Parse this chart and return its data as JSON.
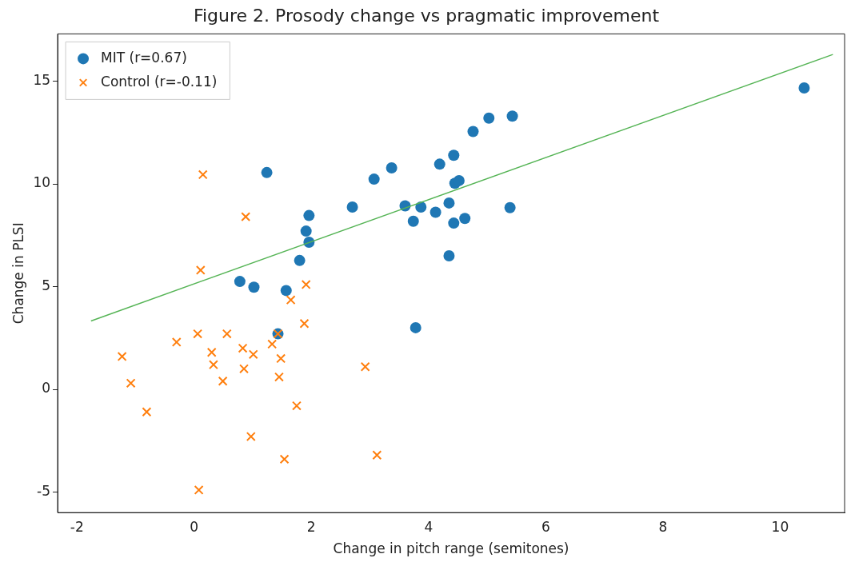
{
  "chart_data": {
    "type": "scatter",
    "title": "Figure 2. Prosody change vs pragmatic improvement",
    "xlabel": "Change in pitch range (semitones)",
    "ylabel": "Change in PLSI",
    "xlim": [
      -2.33,
      11.1
    ],
    "xticks": [
      -2,
      0,
      2,
      4,
      6,
      8,
      10
    ],
    "ylim": [
      -6.0,
      17.3
    ],
    "yticks": [
      -5,
      0,
      5,
      10,
      15
    ],
    "grid": false,
    "legend": "top left",
    "series": [
      {
        "name": "MIT (r=0.67)",
        "color": "#1f77b4",
        "marker": "circle",
        "x": [
          1.24,
          1.96,
          1.91,
          1.96,
          1.8,
          2.7,
          3.07,
          3.37,
          3.6,
          3.87,
          3.74,
          4.12,
          4.19,
          4.43,
          4.45,
          4.52,
          4.35,
          4.43,
          4.62,
          4.76,
          5.03,
          5.43,
          5.39,
          4.35,
          3.78,
          0.78,
          1.02,
          1.57,
          1.43,
          10.41
        ],
        "values": [
          10.55,
          8.46,
          7.7,
          7.16,
          6.27,
          8.87,
          10.23,
          10.78,
          8.93,
          8.87,
          8.18,
          8.62,
          10.96,
          11.39,
          10.03,
          10.16,
          9.07,
          8.09,
          8.32,
          12.55,
          13.2,
          13.3,
          8.84,
          6.5,
          3.0,
          5.25,
          4.97,
          4.81,
          2.7,
          14.67
        ]
      },
      {
        "name": "Control (r=-0.11)",
        "color": "#ff7f0e",
        "marker": "cross",
        "x": [
          -1.23,
          -1.08,
          -0.81,
          -0.3,
          0.06,
          0.56,
          0.3,
          0.33,
          0.49,
          0.83,
          1.01,
          0.85,
          1.33,
          1.48,
          1.45,
          1.88,
          1.75,
          0.97,
          1.54,
          2.92,
          3.12,
          0.08,
          1.43,
          0.15,
          0.88,
          0.11,
          1.91,
          1.65
        ],
        "values": [
          1.6,
          0.3,
          -1.1,
          2.3,
          2.7,
          2.7,
          1.8,
          1.2,
          0.4,
          2.0,
          1.7,
          1.0,
          2.2,
          1.5,
          0.6,
          3.2,
          -0.8,
          -2.3,
          -3.4,
          1.1,
          -3.2,
          -4.9,
          2.7,
          10.45,
          8.4,
          5.8,
          5.1,
          4.35
        ]
      },
      {
        "type": "line",
        "color": "#55b455",
        "marker": "none",
        "x": [
          -1.76,
          10.9
        ],
        "values": [
          3.33,
          16.3
        ]
      }
    ]
  }
}
